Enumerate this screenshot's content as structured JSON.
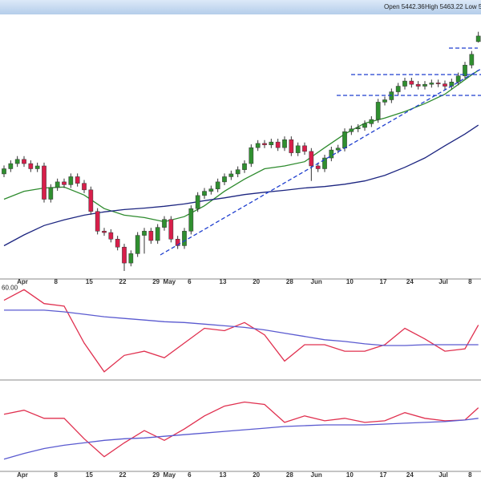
{
  "chart_data": [
    {
      "type": "candlestick",
      "annotations": [
        "Open 5442.36",
        "High 5463.22",
        "Low 5"
      ],
      "categories": [
        null,
        null,
        null,
        "Apr",
        null,
        null,
        null,
        null,
        "8",
        null,
        null,
        null,
        null,
        "15",
        null,
        null,
        null,
        null,
        "22",
        null,
        null,
        null,
        null,
        "29",
        null,
        "May",
        null,
        null,
        "6",
        null,
        null,
        null,
        null,
        "13",
        null,
        null,
        null,
        null,
        "20",
        null,
        null,
        null,
        null,
        "28",
        null,
        null,
        null,
        "Jun",
        null,
        null,
        null,
        null,
        "10",
        null,
        null,
        null,
        null,
        "17",
        null,
        null,
        null,
        "24",
        null,
        null,
        null,
        null,
        "Jul",
        null,
        null,
        null,
        "8",
        null
      ],
      "open": [
        5160,
        5171,
        5182,
        5191,
        5182,
        5171,
        5177,
        5106,
        5131,
        5143,
        5137,
        5154,
        5140,
        5126,
        5080,
        5038,
        5035,
        5021,
        5004,
        4970,
        4990,
        5029,
        5038,
        5018,
        5046,
        5063,
        5021,
        5007,
        5038,
        5086,
        5114,
        5123,
        5128,
        5143,
        5154,
        5160,
        5169,
        5182,
        5216,
        5225,
        5222,
        5228,
        5216,
        5233,
        5205,
        5220,
        5208,
        5177,
        5171,
        5194,
        5211,
        5215,
        5250,
        5256,
        5259,
        5267,
        5276,
        5313,
        5318,
        5335,
        5347,
        5358,
        5351,
        5347,
        5351,
        5354,
        5352,
        5347,
        5356,
        5369,
        5392,
        5442
      ],
      "high": [
        5178,
        5189,
        5198,
        5198,
        5189,
        5184,
        5184,
        5138,
        5150,
        5150,
        5161,
        5161,
        5147,
        5133,
        5087,
        5045,
        5042,
        5028,
        5011,
        4997,
        5036,
        5045,
        5045,
        5053,
        5070,
        5070,
        5028,
        5045,
        5093,
        5121,
        5130,
        5135,
        5150,
        5161,
        5167,
        5176,
        5189,
        5223,
        5232,
        5232,
        5235,
        5235,
        5240,
        5240,
        5227,
        5227,
        5215,
        5184,
        5201,
        5218,
        5222,
        5257,
        5263,
        5266,
        5274,
        5283,
        5320,
        5325,
        5342,
        5354,
        5365,
        5365,
        5358,
        5358,
        5361,
        5361,
        5359,
        5363,
        5376,
        5399,
        5422,
        5463
      ],
      "low": [
        5153,
        5164,
        5175,
        5175,
        5164,
        5164,
        5099,
        5099,
        5124,
        5130,
        5130,
        5133,
        5119,
        5073,
        5031,
        5028,
        5014,
        4997,
        4953,
        4963,
        4983,
        4990,
        5011,
        5011,
        5039,
        5014,
        5000,
        5000,
        5031,
        5079,
        5107,
        5116,
        5121,
        5136,
        5147,
        5153,
        5162,
        5175,
        5209,
        5215,
        5215,
        5209,
        5209,
        5198,
        5198,
        5201,
        5145,
        5164,
        5164,
        5187,
        5204,
        5208,
        5243,
        5249,
        5252,
        5260,
        5269,
        5306,
        5311,
        5328,
        5340,
        5344,
        5340,
        5340,
        5344,
        5345,
        5340,
        5340,
        5349,
        5362,
        5385,
        5440
      ],
      "close": [
        5171,
        5182,
        5191,
        5182,
        5171,
        5177,
        5106,
        5131,
        5143,
        5137,
        5154,
        5140,
        5126,
        5080,
        5038,
        5035,
        5021,
        5004,
        4970,
        4990,
        5029,
        5038,
        5018,
        5046,
        5063,
        5021,
        5007,
        5038,
        5086,
        5114,
        5123,
        5128,
        5143,
        5154,
        5160,
        5169,
        5182,
        5216,
        5225,
        5222,
        5228,
        5216,
        5233,
        5205,
        5220,
        5208,
        5177,
        5171,
        5194,
        5211,
        5215,
        5250,
        5256,
        5259,
        5267,
        5276,
        5313,
        5318,
        5335,
        5347,
        5358,
        5351,
        5347,
        5351,
        5354,
        5352,
        5347,
        5356,
        5369,
        5392,
        5415,
        5454
      ],
      "up_color": "#2f8f2f",
      "down_color": "#d81e4a",
      "x": [
        0,
        3,
        6,
        9,
        12,
        15,
        18,
        21,
        24,
        27,
        30,
        33,
        36,
        39,
        42,
        45,
        48,
        51,
        54,
        57,
        60,
        63,
        66,
        69,
        71
      ],
      "series": [
        {
          "color": "#2e8b2e",
          "values": [
            5106,
            5123,
            5130,
            5132,
            5115,
            5086,
            5072,
            5067,
            5058,
            5069,
            5092,
            5123,
            5149,
            5171,
            5177,
            5186,
            5216,
            5245,
            5268,
            5279,
            5293,
            5310,
            5330,
            5361,
            5381
          ]
        },
        {
          "color": "#1c2580",
          "values": [
            5007,
            5030,
            5050,
            5062,
            5072,
            5079,
            5084,
            5087,
            5091,
            5096,
            5103,
            5109,
            5116,
            5121,
            5125,
            5130,
            5133,
            5138,
            5145,
            5157,
            5174,
            5194,
            5220,
            5245,
            5264
          ]
        }
      ],
      "xlim": [
        -0.6,
        71.4
      ],
      "ylim": [
        4936,
        5500
      ]
    },
    {
      "type": "line",
      "x": [
        0,
        3,
        6,
        9,
        12,
        15,
        18,
        21,
        24,
        27,
        30,
        33,
        36,
        39,
        42,
        45,
        48,
        51,
        54,
        57,
        60,
        63,
        66,
        69,
        71
      ],
      "series": [
        {
          "color": "#e0304f",
          "values": [
            57,
            59.6,
            56.2,
            55.6,
            46.6,
            39.6,
            43.6,
            44.6,
            43,
            46.6,
            50.2,
            49.6,
            51.6,
            48.6,
            42.2,
            46.2,
            46.2,
            44.6,
            44.6,
            46.2,
            50.2,
            47.6,
            44.6,
            45.2,
            51
          ]
        },
        {
          "color": "#5a5ad0",
          "values": [
            54.6,
            54.6,
            54.6,
            54.2,
            53.6,
            53,
            52.6,
            52.2,
            51.8,
            51.6,
            51.2,
            50.8,
            50.4,
            49.8,
            49,
            48.2,
            47.4,
            47,
            46.4,
            46,
            46,
            46.2,
            46.2,
            46.2,
            46.2
          ]
        }
      ],
      "yticks": [
        {
          "value": 60,
          "label": "60.00"
        }
      ],
      "xlim": [
        -0.6,
        71.4
      ],
      "ylim": [
        37.6,
        62.2
      ]
    },
    {
      "type": "line",
      "x": [
        0,
        3,
        6,
        9,
        12,
        15,
        18,
        21,
        24,
        27,
        30,
        33,
        36,
        39,
        42,
        45,
        48,
        51,
        54,
        57,
        60,
        63,
        66,
        69,
        71
      ],
      "series": [
        {
          "color": "#e0304f",
          "values": [
            70,
            75,
            65,
            65,
            40,
            18,
            35,
            50,
            38,
            52,
            68,
            80,
            85,
            82,
            60,
            68,
            62,
            65,
            60,
            62,
            72,
            65,
            62,
            63,
            78
          ]
        },
        {
          "color": "#5a5ad0",
          "values": [
            15,
            22,
            28,
            32,
            35,
            38,
            40,
            41,
            43,
            45,
            47,
            49,
            51,
            53,
            55,
            56,
            57,
            57,
            57,
            58,
            59,
            60,
            61,
            63,
            65
          ]
        }
      ],
      "xlim": [
        -0.6,
        71.4
      ],
      "ylim": [
        0,
        112
      ]
    }
  ]
}
